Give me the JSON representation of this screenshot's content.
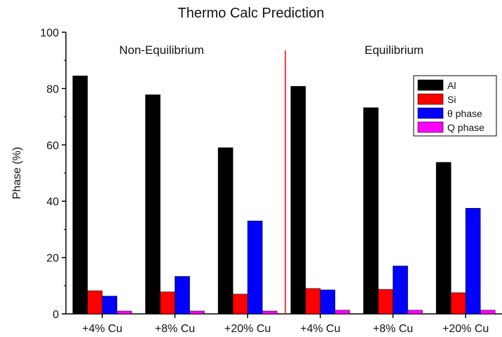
{
  "chart_data": {
    "type": "bar",
    "title": "Thermo Calc Prediction",
    "xlabel": "",
    "ylabel": "Phase (%)",
    "ylim": [
      0,
      100
    ],
    "yticks": [
      0,
      20,
      40,
      60,
      80,
      100
    ],
    "grid": false,
    "legend_position": "top-right",
    "regions": [
      "Non-Equilibrium",
      "Equilibrium"
    ],
    "categories": [
      "+4% Cu",
      "+8% Cu",
      "+20% Cu",
      "+4% Cu",
      "+8% Cu",
      "+20% Cu"
    ],
    "series": [
      {
        "name": "Al",
        "color": "#000000",
        "values": [
          84.5,
          77.8,
          59.0,
          80.8,
          73.2,
          53.8
        ]
      },
      {
        "name": "Si",
        "color": "#ff0000",
        "values": [
          8.2,
          7.8,
          7.0,
          9.0,
          8.7,
          7.5
        ]
      },
      {
        "name": "θ phase",
        "color": "#0000ff",
        "values": [
          6.3,
          13.3,
          33.0,
          8.5,
          17.0,
          37.5
        ]
      },
      {
        "name": "Q phase",
        "color": "#ff00ff",
        "values": [
          1.0,
          1.0,
          1.0,
          1.3,
          1.3,
          1.3
        ]
      }
    ],
    "divider_color": "#ff0000"
  }
}
